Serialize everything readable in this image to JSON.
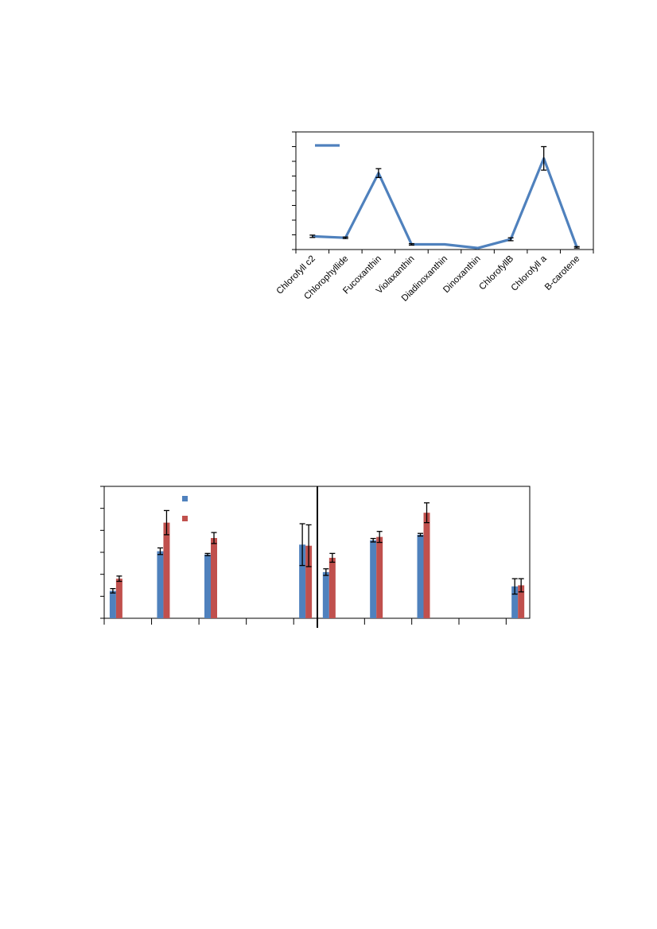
{
  "colors": {
    "line_series": "#4f81bd",
    "bar_series_1": "#4f81bd",
    "bar_series_2": "#c0504d",
    "axis": "#000000",
    "error_bar": "#000000",
    "panel_divider": "#000000"
  },
  "chart_data": [
    {
      "type": "line",
      "title": "",
      "xlabel": "",
      "ylabel": "",
      "categories": [
        "Chlorofyll c2",
        "Chlorophyllide",
        "Fucoxanthin",
        "Violaxanthin",
        "Diadinoxanthin",
        "Dinoxanthin",
        "ChlorofyllB",
        "Chlorofyll a",
        "B-carotene"
      ],
      "ylim": [
        0,
        8
      ],
      "y_tick_count": 9,
      "y_tick_labels_visible": false,
      "grid": false,
      "legend": {
        "placement": "top-left",
        "entries": [
          ""
        ]
      },
      "series": [
        {
          "values": [
            0.9,
            0.8,
            5.2,
            0.35,
            0.35,
            0.1,
            0.7,
            6.2,
            0.15
          ],
          "errors": [
            0.08,
            0.05,
            0.3,
            0.05,
            0,
            0,
            0.1,
            0.8,
            0.05
          ]
        }
      ]
    },
    {
      "type": "bar",
      "title": "",
      "xlabel": "",
      "ylabel": "",
      "panels": 2,
      "categories_per_panel": 9,
      "ylim": [
        0,
        6
      ],
      "y_tick_count": 7,
      "y_tick_labels_visible": false,
      "grid": false,
      "legend": {
        "placement": "top-left",
        "entries": [
          "",
          ""
        ]
      },
      "series": [
        {
          "values": [
            1.25,
            0,
            3.05,
            0,
            2.9,
            0,
            0,
            0,
            3.35,
            2.1,
            0,
            3.55,
            0,
            3.8,
            0,
            0,
            0,
            1.45
          ],
          "errors": [
            0.1,
            0,
            0.15,
            0,
            0.05,
            0,
            0,
            0,
            0.95,
            0.15,
            0,
            0.08,
            0,
            0.06,
            0,
            0,
            0,
            0.35
          ]
        },
        {
          "values": [
            1.8,
            0,
            4.35,
            0,
            3.65,
            0,
            0,
            0,
            3.3,
            2.75,
            0,
            3.7,
            0,
            4.8,
            0,
            0,
            0,
            1.5
          ],
          "errors": [
            0.12,
            0,
            0.55,
            0,
            0.25,
            0,
            0,
            0,
            0.95,
            0.2,
            0,
            0.25,
            0,
            0.45,
            0,
            0,
            0,
            0.3
          ]
        }
      ]
    }
  ]
}
